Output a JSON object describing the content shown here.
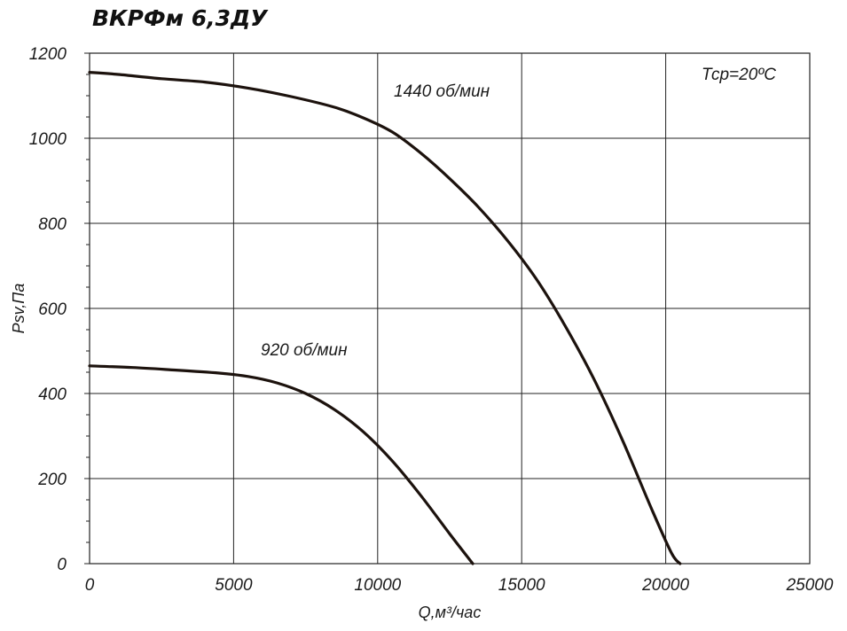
{
  "chart_data": {
    "type": "line",
    "title": "ВКРФм 6,3ДУ",
    "xlabel": "Q,м³/час",
    "ylabel": "Psv,Па",
    "xlim": [
      0,
      25000
    ],
    "ylim": [
      0,
      1200
    ],
    "x_ticks": [
      0,
      5000,
      10000,
      15000,
      20000,
      25000
    ],
    "y_ticks": [
      0,
      200,
      400,
      600,
      800,
      1000,
      1200
    ],
    "x_tick_labels": [
      "0",
      "5000",
      "10000",
      "15000",
      "20000",
      "25000"
    ],
    "y_tick_labels": [
      "0",
      "200",
      "400",
      "600",
      "800",
      "1000",
      "1200"
    ],
    "grid": true,
    "annotation": "Тср=20ºС",
    "series": [
      {
        "name": "1440 об/мин",
        "x": [
          0,
          1000,
          2500,
          4000,
          5500,
          7000,
          8500,
          9500,
          10500,
          11500,
          12500,
          13500,
          14500,
          15500,
          16500,
          17500,
          18500,
          19500,
          20200,
          20500
        ],
        "y": [
          1155,
          1150,
          1140,
          1132,
          1118,
          1098,
          1073,
          1048,
          1015,
          965,
          905,
          838,
          760,
          670,
          560,
          435,
          290,
          130,
          25,
          0
        ]
      },
      {
        "name": "920 об/мин",
        "x": [
          0,
          1500,
          3000,
          4500,
          5500,
          6500,
          7500,
          8500,
          9500,
          10500,
          11500,
          12500,
          13300
        ],
        "y": [
          465,
          461,
          455,
          448,
          440,
          425,
          400,
          362,
          310,
          242,
          160,
          70,
          0
        ]
      }
    ]
  }
}
